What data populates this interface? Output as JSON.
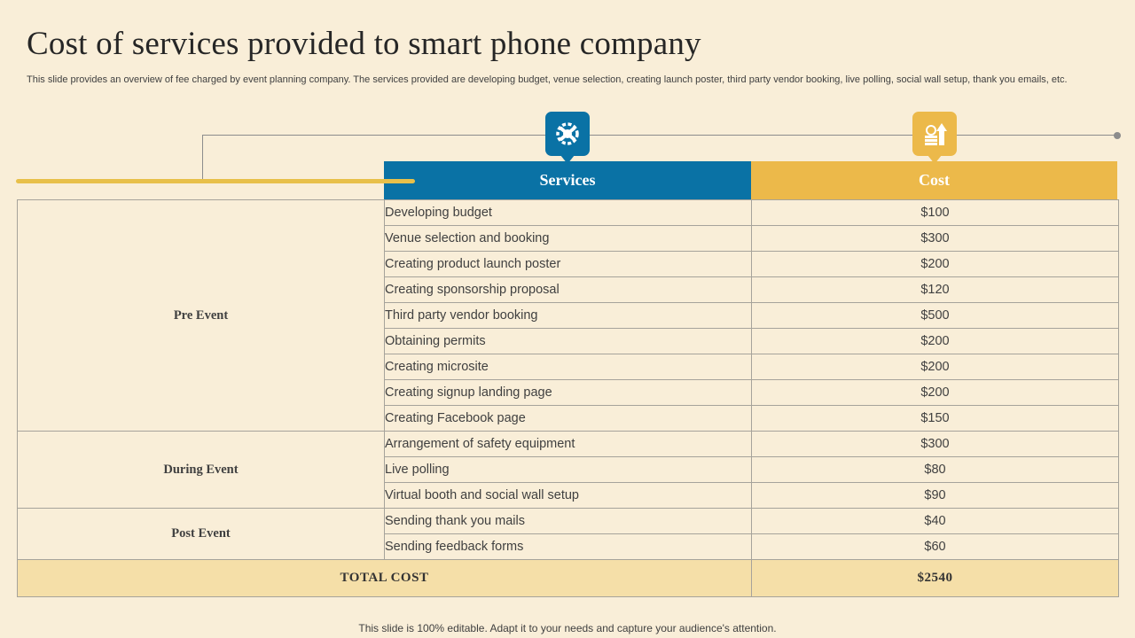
{
  "slide": {
    "title": "Cost of  services provided to smart phone company",
    "subtitle": "This slide provides an overview of fee charged by event planning company. The services provided are developing budget, venue selection, creating launch poster, third party vendor booking, live polling, social wall setup, thank you emails, etc.",
    "footer": "This slide is 100% editable. Adapt it to your needs and capture your audience's attention."
  },
  "icons": {
    "services": "tools-gear-icon",
    "cost": "money-growth-icon"
  },
  "colors": {
    "background": "#f9eed8",
    "services_header": "#0a72a5",
    "cost_header": "#ecb94a",
    "accent_bar": "#e8c04a",
    "total_row": "#f5dfa8"
  },
  "table": {
    "headers": {
      "services": "Services",
      "cost": "Cost"
    },
    "groups": [
      {
        "category": "Pre Event",
        "rows": [
          {
            "service": "Developing budget",
            "cost": "$100"
          },
          {
            "service": "Venue selection and booking",
            "cost": "$300"
          },
          {
            "service": "Creating product launch poster",
            "cost": "$200"
          },
          {
            "service": "Creating sponsorship proposal",
            "cost": "$120"
          },
          {
            "service": "Third party vendor booking",
            "cost": "$500"
          },
          {
            "service": "Obtaining permits",
            "cost": "$200"
          },
          {
            "service": "Creating microsite",
            "cost": "$200"
          },
          {
            "service": "Creating signup landing page",
            "cost": "$200"
          },
          {
            "service": "Creating Facebook page",
            "cost": "$150"
          }
        ]
      },
      {
        "category": "During Event",
        "rows": [
          {
            "service": "Arrangement of safety equipment",
            "cost": "$300"
          },
          {
            "service": "Live polling",
            "cost": "$80"
          },
          {
            "service": "Virtual booth and social wall setup",
            "cost": "$90"
          }
        ]
      },
      {
        "category": "Post Event",
        "rows": [
          {
            "service": "Sending thank you mails",
            "cost": "$40"
          },
          {
            "service": "Sending feedback forms",
            "cost": "$60"
          }
        ]
      }
    ],
    "total": {
      "label": "TOTAL COST",
      "value": "$2540"
    }
  }
}
